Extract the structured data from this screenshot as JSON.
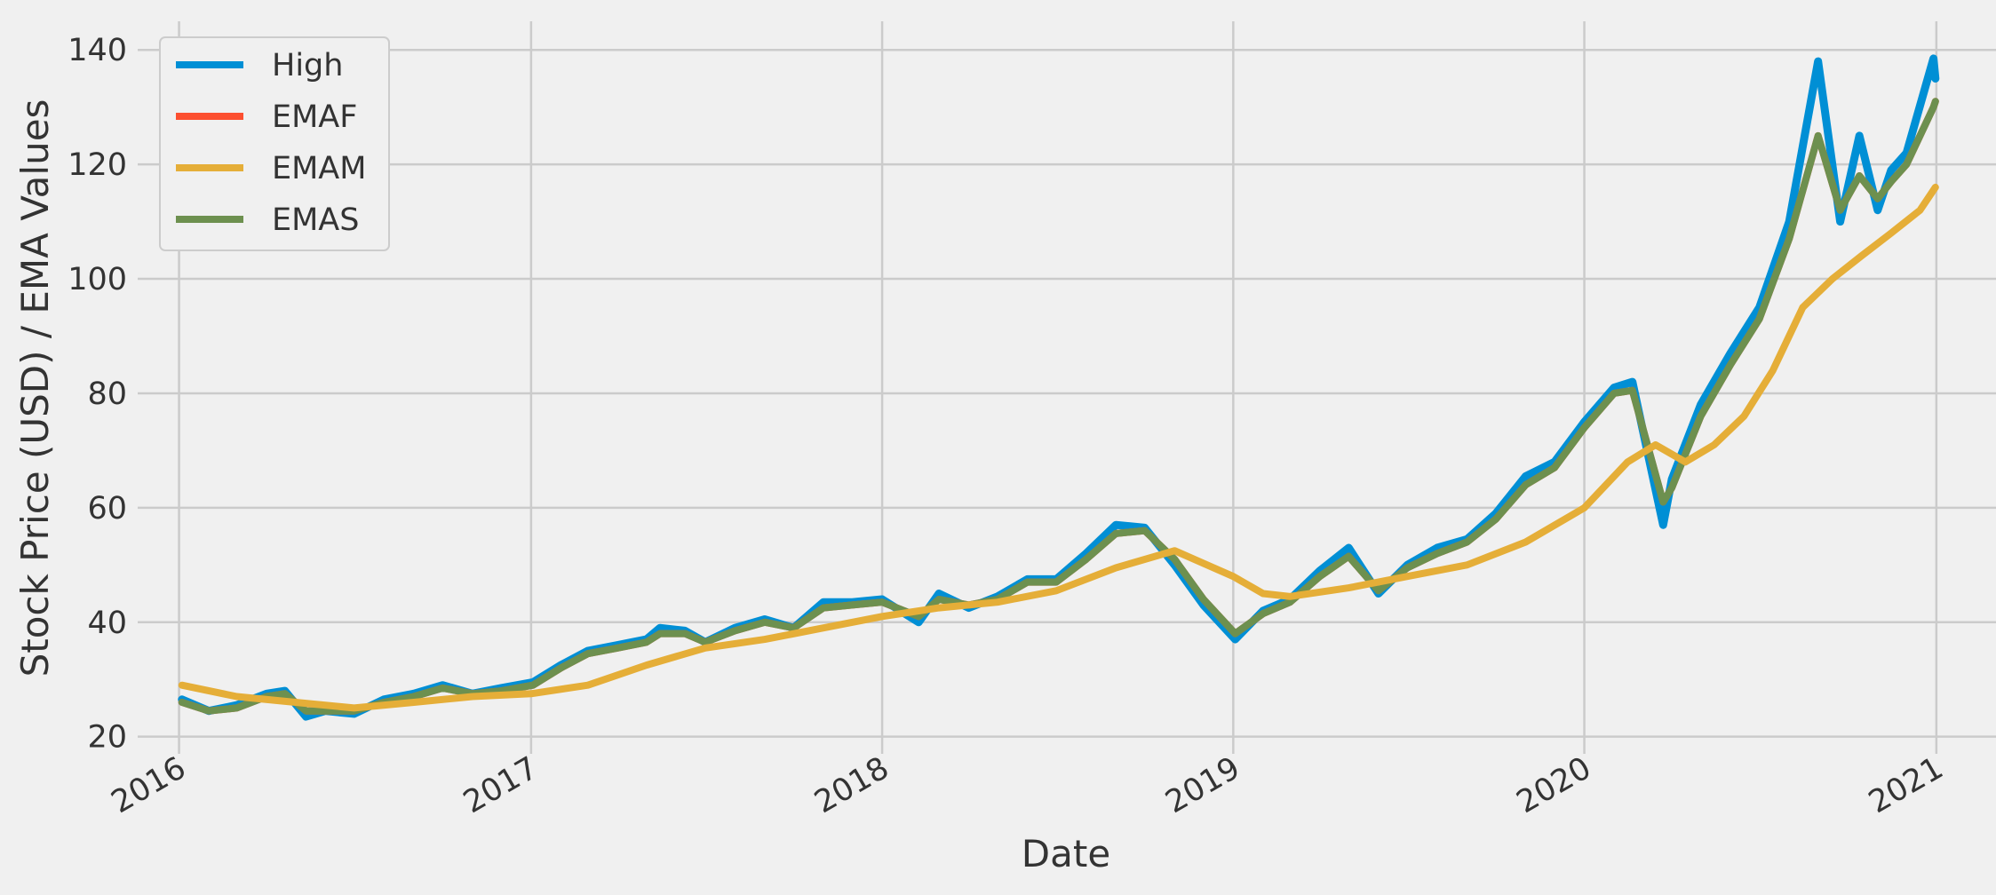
{
  "chart_data": {
    "type": "line",
    "title": "",
    "xlabel": "Date",
    "ylabel": "Stock Price (USD) / EMA Values",
    "x_range": [
      "2016-01-04",
      "2020-12-31"
    ],
    "xlim": [
      "2015-11-19",
      "2021-03-04"
    ],
    "ylim": [
      17,
      145
    ],
    "x_ticks": [
      {
        "date": "2016-01-01",
        "label": "2016"
      },
      {
        "date": "2017-01-01",
        "label": "2017"
      },
      {
        "date": "2018-01-01",
        "label": "2018"
      },
      {
        "date": "2019-01-01",
        "label": "2019"
      },
      {
        "date": "2020-01-01",
        "label": "2020"
      },
      {
        "date": "2021-01-01",
        "label": "2021"
      }
    ],
    "y_ticks": [
      20,
      40,
      60,
      80,
      100,
      120,
      140
    ],
    "grid": true,
    "legend_position": "top-left",
    "series": [
      {
        "name": "High",
        "color": "#008fd5",
        "points": [
          [
            "2016-01-04",
            26.5
          ],
          [
            "2016-02-01",
            24.5
          ],
          [
            "2016-03-01",
            25.5
          ],
          [
            "2016-04-01",
            27.5
          ],
          [
            "2016-04-20",
            28.0
          ],
          [
            "2016-05-12",
            23.5
          ],
          [
            "2016-06-01",
            24.5
          ],
          [
            "2016-07-01",
            24.0
          ],
          [
            "2016-08-01",
            26.5
          ],
          [
            "2016-09-01",
            27.5
          ],
          [
            "2016-10-01",
            29.0
          ],
          [
            "2016-11-01",
            27.5
          ],
          [
            "2016-12-01",
            28.5
          ],
          [
            "2017-01-03",
            29.5
          ],
          [
            "2017-02-01",
            32.5
          ],
          [
            "2017-03-01",
            35.0
          ],
          [
            "2017-04-01",
            36.0
          ],
          [
            "2017-05-01",
            37.0
          ],
          [
            "2017-05-15",
            39.0
          ],
          [
            "2017-06-10",
            38.5
          ],
          [
            "2017-07-01",
            36.5
          ],
          [
            "2017-08-01",
            39.0
          ],
          [
            "2017-09-01",
            40.5
          ],
          [
            "2017-10-01",
            39.0
          ],
          [
            "2017-11-01",
            43.5
          ],
          [
            "2017-12-01",
            43.5
          ],
          [
            "2018-01-01",
            44.0
          ],
          [
            "2018-02-08",
            40.0
          ],
          [
            "2018-03-01",
            45.0
          ],
          [
            "2018-04-01",
            42.5
          ],
          [
            "2018-05-01",
            44.5
          ],
          [
            "2018-06-01",
            47.5
          ],
          [
            "2018-07-01",
            47.5
          ],
          [
            "2018-08-01",
            52.0
          ],
          [
            "2018-09-01",
            57.0
          ],
          [
            "2018-10-01",
            56.5
          ],
          [
            "2018-11-01",
            50.0
          ],
          [
            "2018-12-01",
            43.0
          ],
          [
            "2019-01-03",
            37.0
          ],
          [
            "2019-02-01",
            42.0
          ],
          [
            "2019-03-01",
            44.0
          ],
          [
            "2019-04-01",
            49.0
          ],
          [
            "2019-05-01",
            53.0
          ],
          [
            "2019-06-01",
            45.0
          ],
          [
            "2019-07-01",
            50.0
          ],
          [
            "2019-08-01",
            53.0
          ],
          [
            "2019-09-01",
            54.5
          ],
          [
            "2019-10-01",
            59.0
          ],
          [
            "2019-11-01",
            65.5
          ],
          [
            "2019-12-01",
            68.0
          ],
          [
            "2020-01-01",
            75.0
          ],
          [
            "2020-02-01",
            81.0
          ],
          [
            "2020-02-20",
            82.0
          ],
          [
            "2020-03-23",
            57.0
          ],
          [
            "2020-04-01",
            65.0
          ],
          [
            "2020-05-01",
            78.0
          ],
          [
            "2020-06-01",
            87.0
          ],
          [
            "2020-07-01",
            95.0
          ],
          [
            "2020-08-01",
            110.0
          ],
          [
            "2020-08-31",
            138.0
          ],
          [
            "2020-09-23",
            110.0
          ],
          [
            "2020-10-13",
            125.0
          ],
          [
            "2020-11-01",
            112.0
          ],
          [
            "2020-11-15",
            119.0
          ],
          [
            "2020-12-01",
            122.0
          ],
          [
            "2020-12-29",
            138.5
          ],
          [
            "2020-12-31",
            135.0
          ]
        ]
      },
      {
        "name": "EMAF",
        "color": "#fc4f30",
        "points": [
          [
            "2016-01-04",
            26.0
          ],
          [
            "2016-02-01",
            24.5
          ],
          [
            "2016-03-01",
            25.0
          ],
          [
            "2016-04-01",
            27.0
          ],
          [
            "2016-04-20",
            27.5
          ],
          [
            "2016-05-12",
            24.5
          ],
          [
            "2016-06-01",
            24.5
          ],
          [
            "2016-07-01",
            24.5
          ],
          [
            "2016-08-01",
            26.0
          ],
          [
            "2016-09-01",
            27.0
          ],
          [
            "2016-10-01",
            28.5
          ],
          [
            "2016-11-01",
            27.5
          ],
          [
            "2016-12-01",
            28.0
          ],
          [
            "2017-01-03",
            29.0
          ],
          [
            "2017-02-01",
            32.0
          ],
          [
            "2017-03-01",
            34.5
          ],
          [
            "2017-04-01",
            35.5
          ],
          [
            "2017-05-01",
            36.5
          ],
          [
            "2017-05-15",
            38.0
          ],
          [
            "2017-06-10",
            38.0
          ],
          [
            "2017-07-01",
            36.5
          ],
          [
            "2017-08-01",
            38.5
          ],
          [
            "2017-09-01",
            40.0
          ],
          [
            "2017-10-01",
            39.0
          ],
          [
            "2017-11-01",
            42.5
          ],
          [
            "2017-12-01",
            43.0
          ],
          [
            "2018-01-01",
            43.5
          ],
          [
            "2018-02-08",
            41.0
          ],
          [
            "2018-03-01",
            44.0
          ],
          [
            "2018-04-01",
            43.0
          ],
          [
            "2018-05-01",
            44.0
          ],
          [
            "2018-06-01",
            47.0
          ],
          [
            "2018-07-01",
            47.0
          ],
          [
            "2018-08-01",
            51.0
          ],
          [
            "2018-09-01",
            55.5
          ],
          [
            "2018-10-01",
            56.0
          ],
          [
            "2018-11-01",
            51.0
          ],
          [
            "2018-12-01",
            44.0
          ],
          [
            "2019-01-03",
            38.0
          ],
          [
            "2019-02-01",
            41.5
          ],
          [
            "2019-03-01",
            43.5
          ],
          [
            "2019-04-01",
            48.0
          ],
          [
            "2019-05-01",
            51.5
          ],
          [
            "2019-06-01",
            45.5
          ],
          [
            "2019-07-01",
            49.5
          ],
          [
            "2019-08-01",
            52.0
          ],
          [
            "2019-09-01",
            54.0
          ],
          [
            "2019-10-01",
            58.0
          ],
          [
            "2019-11-01",
            64.0
          ],
          [
            "2019-12-01",
            67.0
          ],
          [
            "2020-01-01",
            74.0
          ],
          [
            "2020-02-01",
            80.0
          ],
          [
            "2020-02-20",
            80.5
          ],
          [
            "2020-03-23",
            61.0
          ],
          [
            "2020-04-01",
            63.5
          ],
          [
            "2020-05-01",
            76.0
          ],
          [
            "2020-06-01",
            85.0
          ],
          [
            "2020-07-01",
            93.0
          ],
          [
            "2020-08-01",
            107.0
          ],
          [
            "2020-08-31",
            125.0
          ],
          [
            "2020-09-23",
            112.0
          ],
          [
            "2020-10-13",
            118.0
          ],
          [
            "2020-11-01",
            114.0
          ],
          [
            "2020-11-15",
            117.0
          ],
          [
            "2020-12-01",
            120.0
          ],
          [
            "2020-12-29",
            130.0
          ],
          [
            "2020-12-31",
            131.0
          ]
        ]
      },
      {
        "name": "EMAM",
        "color": "#e5ae38",
        "points": [
          [
            "2016-01-04",
            29.0
          ],
          [
            "2016-03-01",
            27.0
          ],
          [
            "2016-05-01",
            26.0
          ],
          [
            "2016-07-01",
            25.0
          ],
          [
            "2016-09-01",
            26.0
          ],
          [
            "2016-11-01",
            27.0
          ],
          [
            "2017-01-01",
            27.5
          ],
          [
            "2017-03-01",
            29.0
          ],
          [
            "2017-05-01",
            32.5
          ],
          [
            "2017-07-01",
            35.5
          ],
          [
            "2017-09-01",
            37.0
          ],
          [
            "2017-11-01",
            39.0
          ],
          [
            "2018-01-01",
            41.0
          ],
          [
            "2018-03-01",
            42.5
          ],
          [
            "2018-05-01",
            43.5
          ],
          [
            "2018-07-01",
            45.5
          ],
          [
            "2018-09-01",
            49.5
          ],
          [
            "2018-11-01",
            52.5
          ],
          [
            "2019-01-01",
            48.0
          ],
          [
            "2019-02-01",
            45.0
          ],
          [
            "2019-03-01",
            44.5
          ],
          [
            "2019-05-01",
            46.0
          ],
          [
            "2019-07-01",
            48.0
          ],
          [
            "2019-09-01",
            50.0
          ],
          [
            "2019-11-01",
            54.0
          ],
          [
            "2020-01-01",
            60.0
          ],
          [
            "2020-02-15",
            68.0
          ],
          [
            "2020-03-15",
            71.0
          ],
          [
            "2020-04-15",
            68.0
          ],
          [
            "2020-05-15",
            71.0
          ],
          [
            "2020-06-15",
            76.0
          ],
          [
            "2020-07-15",
            84.0
          ],
          [
            "2020-08-15",
            95.0
          ],
          [
            "2020-09-15",
            100.0
          ],
          [
            "2020-10-15",
            104.0
          ],
          [
            "2020-11-15",
            108.0
          ],
          [
            "2020-12-15",
            112.0
          ],
          [
            "2020-12-31",
            116.0
          ]
        ]
      },
      {
        "name": "EMAS",
        "color": "#6d904f",
        "points": [
          [
            "2016-01-04",
            26.0
          ],
          [
            "2016-02-01",
            24.5
          ],
          [
            "2016-03-01",
            25.0
          ],
          [
            "2016-04-01",
            27.0
          ],
          [
            "2016-04-20",
            27.5
          ],
          [
            "2016-05-12",
            24.5
          ],
          [
            "2016-06-01",
            24.5
          ],
          [
            "2016-07-01",
            24.5
          ],
          [
            "2016-08-01",
            26.0
          ],
          [
            "2016-09-01",
            27.0
          ],
          [
            "2016-10-01",
            28.5
          ],
          [
            "2016-11-01",
            27.5
          ],
          [
            "2016-12-01",
            28.0
          ],
          [
            "2017-01-03",
            29.0
          ],
          [
            "2017-02-01",
            32.0
          ],
          [
            "2017-03-01",
            34.5
          ],
          [
            "2017-04-01",
            35.5
          ],
          [
            "2017-05-01",
            36.5
          ],
          [
            "2017-05-15",
            38.0
          ],
          [
            "2017-06-10",
            38.0
          ],
          [
            "2017-07-01",
            36.5
          ],
          [
            "2017-08-01",
            38.5
          ],
          [
            "2017-09-01",
            40.0
          ],
          [
            "2017-10-01",
            39.0
          ],
          [
            "2017-11-01",
            42.5
          ],
          [
            "2017-12-01",
            43.0
          ],
          [
            "2018-01-01",
            43.5
          ],
          [
            "2018-02-08",
            41.0
          ],
          [
            "2018-03-01",
            44.0
          ],
          [
            "2018-04-01",
            43.0
          ],
          [
            "2018-05-01",
            44.0
          ],
          [
            "2018-06-01",
            47.0
          ],
          [
            "2018-07-01",
            47.0
          ],
          [
            "2018-08-01",
            51.0
          ],
          [
            "2018-09-01",
            55.5
          ],
          [
            "2018-10-01",
            56.0
          ],
          [
            "2018-11-01",
            51.0
          ],
          [
            "2018-12-01",
            44.0
          ],
          [
            "2019-01-03",
            38.0
          ],
          [
            "2019-02-01",
            41.5
          ],
          [
            "2019-03-01",
            43.5
          ],
          [
            "2019-04-01",
            48.0
          ],
          [
            "2019-05-01",
            51.5
          ],
          [
            "2019-06-01",
            45.5
          ],
          [
            "2019-07-01",
            49.5
          ],
          [
            "2019-08-01",
            52.0
          ],
          [
            "2019-09-01",
            54.0
          ],
          [
            "2019-10-01",
            58.0
          ],
          [
            "2019-11-01",
            64.0
          ],
          [
            "2019-12-01",
            67.0
          ],
          [
            "2020-01-01",
            74.0
          ],
          [
            "2020-02-01",
            80.0
          ],
          [
            "2020-02-20",
            80.5
          ],
          [
            "2020-03-23",
            61.0
          ],
          [
            "2020-04-01",
            63.5
          ],
          [
            "2020-05-01",
            76.0
          ],
          [
            "2020-06-01",
            85.0
          ],
          [
            "2020-07-01",
            93.0
          ],
          [
            "2020-08-01",
            107.0
          ],
          [
            "2020-08-31",
            125.0
          ],
          [
            "2020-09-23",
            112.0
          ],
          [
            "2020-10-13",
            118.0
          ],
          [
            "2020-11-01",
            114.0
          ],
          [
            "2020-11-15",
            117.0
          ],
          [
            "2020-12-01",
            120.0
          ],
          [
            "2020-12-29",
            130.0
          ],
          [
            "2020-12-31",
            131.0
          ]
        ]
      }
    ]
  }
}
